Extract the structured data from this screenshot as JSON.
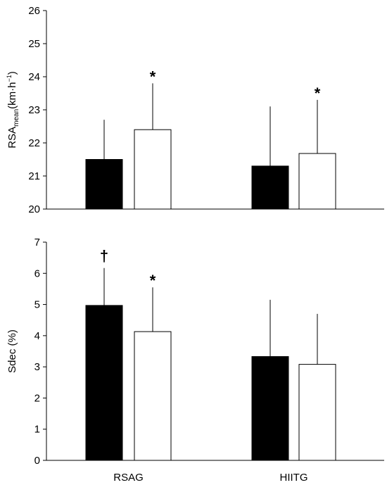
{
  "chart_data": [
    {
      "type": "bar",
      "categories": [
        "RSAG",
        "HIITG"
      ],
      "series": [
        {
          "color": "#000000",
          "values": [
            21.5,
            21.3
          ],
          "errors": [
            1.2,
            1.8
          ]
        },
        {
          "color": "#ffffff",
          "values": [
            22.4,
            21.68
          ],
          "errors": [
            1.4,
            1.62
          ]
        }
      ],
      "ylabel": {
        "main": "RSA",
        "sub": "mean",
        "unit_open": "(km·h",
        "sup": "−1",
        "unit_close": ")"
      },
      "ylim": [
        20,
        26
      ],
      "yticks": [
        "20",
        "21",
        "22",
        "23",
        "24",
        "25",
        "26"
      ],
      "show_category_labels": false,
      "annotations": [
        {
          "category": "RSAG",
          "series": 1,
          "text": "*"
        },
        {
          "category": "HIITG",
          "series": 1,
          "text": "*"
        }
      ]
    },
    {
      "type": "bar",
      "categories": [
        "RSAG",
        "HIITG"
      ],
      "series": [
        {
          "color": "#000000",
          "values": [
            4.97,
            3.33
          ],
          "errors": [
            1.2,
            1.82
          ]
        },
        {
          "color": "#ffffff",
          "values": [
            4.13,
            3.08
          ],
          "errors": [
            1.42,
            1.62
          ]
        }
      ],
      "ylabel": {
        "main": "Sdec (%)"
      },
      "ylim": [
        0,
        7
      ],
      "yticks": [
        "0",
        "1",
        "2",
        "3",
        "4",
        "5",
        "6",
        "7"
      ],
      "show_category_labels": true,
      "annotations": [
        {
          "category": "RSAG",
          "series": 0,
          "text": "†"
        },
        {
          "category": "RSAG",
          "series": 1,
          "text": "*"
        }
      ]
    }
  ]
}
